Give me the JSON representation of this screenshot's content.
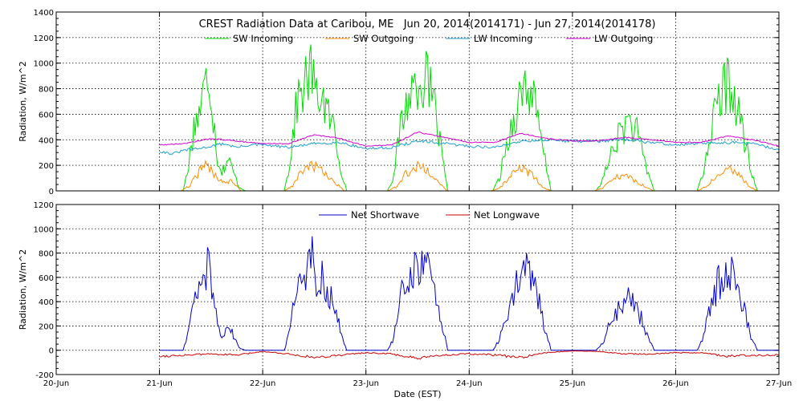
{
  "chart_data": {
    "title": "CREST Radiation Data at Caribou, ME   Jun 20, 2014(2014171) - Jun 27, 2014(2014178)",
    "xlabel": "Date (EST)",
    "x_ticks": [
      "20-Jun",
      "21-Jun",
      "22-Jun",
      "23-Jun",
      "24-Jun",
      "25-Jun",
      "26-Jun",
      "27-Jun"
    ],
    "xlim": [
      "2014-06-20",
      "2014-06-27"
    ],
    "panels": [
      {
        "type": "line",
        "ylabel": "Radiation, W/m^2",
        "ylim": [
          0,
          1400
        ],
        "y_ticks": [
          0,
          200,
          400,
          600,
          800,
          1000,
          1200,
          1400
        ],
        "grid": true,
        "legend_position": "top",
        "series": [
          {
            "name": "SW Incoming",
            "color": "#00dd00",
            "noise": 0.28,
            "x": [
              "2014-06-21T00:00",
              "2014-06-21T05:30",
              "2014-06-21T06:30",
              "2014-06-21T08:00",
              "2014-06-21T09:30",
              "2014-06-21T10:30",
              "2014-06-21T11:30",
              "2014-06-21T12:30",
              "2014-06-21T13:30",
              "2014-06-21T14:30",
              "2014-06-21T16:00",
              "2014-06-21T17:30",
              "2014-06-21T18:30",
              "2014-06-21T20:00",
              "2014-06-22T05:00",
              "2014-06-22T06:00",
              "2014-06-22T08:00",
              "2014-06-22T10:00",
              "2014-06-22T11:30",
              "2014-06-22T12:30",
              "2014-06-22T13:30",
              "2014-06-22T15:00",
              "2014-06-22T16:30",
              "2014-06-22T18:00",
              "2014-06-22T19:30",
              "2014-06-23T05:00",
              "2014-06-23T06:30",
              "2014-06-23T08:00",
              "2014-06-23T10:00",
              "2014-06-23T12:00",
              "2014-06-23T14:00",
              "2014-06-23T16:00",
              "2014-06-23T17:30",
              "2014-06-23T19:00",
              "2014-06-24T05:30",
              "2014-06-24T07:00",
              "2014-06-24T09:00",
              "2014-06-24T11:00",
              "2014-06-24T13:00",
              "2014-06-24T15:00",
              "2014-06-24T17:00",
              "2014-06-24T19:00",
              "2014-06-25T05:30",
              "2014-06-25T07:00",
              "2014-06-25T09:00",
              "2014-06-25T11:00",
              "2014-06-25T13:00",
              "2014-06-25T15:00",
              "2014-06-25T17:00",
              "2014-06-25T19:00",
              "2014-06-26T05:00",
              "2014-06-26T06:30",
              "2014-06-26T08:00",
              "2014-06-26T10:00",
              "2014-06-26T12:00",
              "2014-06-26T14:00",
              "2014-06-26T16:00",
              "2014-06-26T17:30",
              "2014-06-26T19:00",
              "2014-06-27T00:00"
            ],
            "y": [
              0,
              0,
              150,
              500,
              650,
              800,
              930,
              600,
              250,
              150,
              250,
              120,
              30,
              0,
              0,
              150,
              700,
              850,
              950,
              700,
              800,
              600,
              500,
              200,
              0,
              0,
              120,
              500,
              750,
              880,
              870,
              650,
              300,
              0,
              0,
              100,
              400,
              650,
              850,
              700,
              350,
              0,
              0,
              80,
              300,
              450,
              550,
              450,
              200,
              0,
              0,
              150,
              450,
              700,
              850,
              700,
              400,
              150,
              0,
              0
            ]
          },
          {
            "name": "SW Outgoing",
            "color": "#ff8c00",
            "noise": 0.25,
            "x": [
              "2014-06-21T00:00",
              "2014-06-21T05:00",
              "2014-06-21T07:00",
              "2014-06-21T09:30",
              "2014-06-21T11:00",
              "2014-06-21T13:00",
              "2014-06-21T15:00",
              "2014-06-21T17:00",
              "2014-06-21T19:00",
              "2014-06-22T05:00",
              "2014-06-22T07:00",
              "2014-06-22T09:00",
              "2014-06-22T11:00",
              "2014-06-22T13:00",
              "2014-06-22T15:00",
              "2014-06-22T17:00",
              "2014-06-22T19:00",
              "2014-06-23T05:00",
              "2014-06-23T07:00",
              "2014-06-23T09:00",
              "2014-06-23T11:00",
              "2014-06-23T13:00",
              "2014-06-23T15:00",
              "2014-06-23T17:00",
              "2014-06-23T19:00",
              "2014-06-24T05:00",
              "2014-06-24T07:00",
              "2014-06-24T09:00",
              "2014-06-24T11:00",
              "2014-06-24T13:00",
              "2014-06-24T15:00",
              "2014-06-24T17:00",
              "2014-06-24T19:00",
              "2014-06-25T05:00",
              "2014-06-25T07:00",
              "2014-06-25T09:00",
              "2014-06-25T11:00",
              "2014-06-25T13:00",
              "2014-06-25T15:00",
              "2014-06-25T17:00",
              "2014-06-25T19:00",
              "2014-06-26T05:00",
              "2014-06-26T07:00",
              "2014-06-26T09:00",
              "2014-06-26T11:00",
              "2014-06-26T13:00",
              "2014-06-26T15:00",
              "2014-06-26T17:00",
              "2014-06-26T19:00",
              "2014-06-27T00:00"
            ],
            "y": [
              0,
              0,
              40,
              160,
              200,
              120,
              70,
              80,
              0,
              0,
              40,
              150,
              200,
              180,
              120,
              60,
              0,
              0,
              30,
              120,
              180,
              190,
              140,
              60,
              0,
              0,
              20,
              90,
              170,
              170,
              110,
              30,
              0,
              0,
              20,
              80,
              120,
              110,
              70,
              30,
              0,
              0,
              30,
              110,
              170,
              180,
              120,
              40,
              0,
              0
            ]
          },
          {
            "name": "LW Incoming",
            "color": "#1f9fd0",
            "noise": 0.03,
            "x": [
              "2014-06-21T00:00",
              "2014-06-21T03:00",
              "2014-06-21T06:00",
              "2014-06-21T09:00",
              "2014-06-21T12:00",
              "2014-06-21T15:00",
              "2014-06-21T18:00",
              "2014-06-21T21:00",
              "2014-06-22T00:00",
              "2014-06-22T06:00",
              "2014-06-22T12:00",
              "2014-06-22T18:00",
              "2014-06-23T00:00",
              "2014-06-23T06:00",
              "2014-06-23T12:00",
              "2014-06-23T18:00",
              "2014-06-24T00:00",
              "2014-06-24T06:00",
              "2014-06-24T12:00",
              "2014-06-24T18:00",
              "2014-06-25T00:00",
              "2014-06-25T06:00",
              "2014-06-25T12:00",
              "2014-06-25T18:00",
              "2014-06-26T00:00",
              "2014-06-26T06:00",
              "2014-06-26T12:00",
              "2014-06-26T18:00",
              "2014-06-27T00:00"
            ],
            "y": [
              310,
              290,
              320,
              330,
              350,
              370,
              340,
              360,
              360,
              340,
              370,
              380,
              330,
              340,
              390,
              370,
              350,
              340,
              390,
              400,
              390,
              390,
              400,
              380,
              360,
              370,
              380,
              370,
              320
            ]
          },
          {
            "name": "LW Outgoing",
            "color": "#d000d0",
            "noise": 0.01,
            "x": [
              "2014-06-21T00:00",
              "2014-06-21T06:00",
              "2014-06-21T12:00",
              "2014-06-21T18:00",
              "2014-06-22T00:00",
              "2014-06-22T06:00",
              "2014-06-22T12:00",
              "2014-06-22T18:00",
              "2014-06-23T00:00",
              "2014-06-23T06:00",
              "2014-06-23T12:00",
              "2014-06-23T18:00",
              "2014-06-24T00:00",
              "2014-06-24T06:00",
              "2014-06-24T12:00",
              "2014-06-24T18:00",
              "2014-06-25T00:00",
              "2014-06-25T06:00",
              "2014-06-25T12:00",
              "2014-06-25T18:00",
              "2014-06-26T00:00",
              "2014-06-26T06:00",
              "2014-06-26T12:00",
              "2014-06-26T18:00",
              "2014-06-27T00:00"
            ],
            "y": [
              360,
              370,
              410,
              390,
              370,
              370,
              440,
              410,
              350,
              360,
              460,
              420,
              380,
              380,
              450,
              410,
              390,
              390,
              420,
              400,
              380,
              380,
              430,
              400,
              350
            ]
          }
        ]
      },
      {
        "type": "line",
        "ylabel": "Radiation, W/m^2",
        "ylim": [
          -200,
          1200
        ],
        "y_ticks": [
          -200,
          0,
          200,
          400,
          600,
          800,
          1000,
          1200
        ],
        "grid": true,
        "legend_position": "top",
        "series": [
          {
            "name": "Net Shortwave",
            "color": "#0000cc",
            "noise": 0.28,
            "x": [
              "2014-06-21T00:00",
              "2014-06-21T05:30",
              "2014-06-21T06:30",
              "2014-06-21T08:00",
              "2014-06-21T09:30",
              "2014-06-21T10:30",
              "2014-06-21T11:30",
              "2014-06-21T12:30",
              "2014-06-21T13:30",
              "2014-06-21T14:30",
              "2014-06-21T16:00",
              "2014-06-21T17:30",
              "2014-06-21T18:30",
              "2014-06-21T20:00",
              "2014-06-22T05:00",
              "2014-06-22T06:00",
              "2014-06-22T08:00",
              "2014-06-22T10:00",
              "2014-06-22T11:30",
              "2014-06-22T12:30",
              "2014-06-22T13:30",
              "2014-06-22T15:00",
              "2014-06-22T16:30",
              "2014-06-22T18:00",
              "2014-06-22T19:30",
              "2014-06-23T05:00",
              "2014-06-23T06:30",
              "2014-06-23T08:00",
              "2014-06-23T10:00",
              "2014-06-23T12:00",
              "2014-06-23T14:00",
              "2014-06-23T16:00",
              "2014-06-23T17:30",
              "2014-06-23T19:00",
              "2014-06-24T05:30",
              "2014-06-24T07:00",
              "2014-06-24T09:00",
              "2014-06-24T11:00",
              "2014-06-24T13:00",
              "2014-06-24T15:00",
              "2014-06-24T17:00",
              "2014-06-24T19:00",
              "2014-06-25T05:30",
              "2014-06-25T07:00",
              "2014-06-25T09:00",
              "2014-06-25T11:00",
              "2014-06-25T13:00",
              "2014-06-25T15:00",
              "2014-06-25T17:00",
              "2014-06-25T19:00",
              "2014-06-26T05:00",
              "2014-06-26T06:30",
              "2014-06-26T08:00",
              "2014-06-26T10:00",
              "2014-06-26T12:00",
              "2014-06-26T14:00",
              "2014-06-26T16:00",
              "2014-06-26T17:30",
              "2014-06-26T19:00",
              "2014-06-27T00:00"
            ],
            "y": [
              0,
              0,
              120,
              400,
              520,
              620,
              720,
              450,
              220,
              130,
              200,
              100,
              20,
              0,
              0,
              120,
              560,
              680,
              770,
              560,
              640,
              480,
              400,
              160,
              0,
              0,
              100,
              420,
              620,
              700,
              690,
              520,
              240,
              0,
              0,
              80,
              330,
              520,
              680,
              560,
              280,
              0,
              0,
              60,
              240,
              360,
              440,
              360,
              160,
              0,
              0,
              120,
              360,
              560,
              690,
              560,
              320,
              120,
              0,
              0
            ]
          },
          {
            "name": "Net Longwave",
            "color": "#cc0000",
            "noise": 0.2,
            "x": [
              "2014-06-21T00:00",
              "2014-06-21T06:00",
              "2014-06-21T12:00",
              "2014-06-21T18:00",
              "2014-06-22T00:00",
              "2014-06-22T06:00",
              "2014-06-22T12:00",
              "2014-06-22T18:00",
              "2014-06-23T00:00",
              "2014-06-23T06:00",
              "2014-06-23T12:00",
              "2014-06-23T18:00",
              "2014-06-24T00:00",
              "2014-06-24T06:00",
              "2014-06-24T12:00",
              "2014-06-24T18:00",
              "2014-06-25T00:00",
              "2014-06-25T06:00",
              "2014-06-25T12:00",
              "2014-06-25T18:00",
              "2014-06-26T00:00",
              "2014-06-26T06:00",
              "2014-06-26T12:00",
              "2014-06-26T18:00",
              "2014-06-27T00:00"
            ],
            "y": [
              -50,
              -40,
              -30,
              -40,
              -10,
              -30,
              -60,
              -40,
              -20,
              -30,
              -70,
              -40,
              -30,
              -40,
              -60,
              -20,
              -5,
              -10,
              -30,
              -30,
              -20,
              -20,
              -50,
              -40,
              -40
            ]
          }
        ]
      }
    ]
  }
}
